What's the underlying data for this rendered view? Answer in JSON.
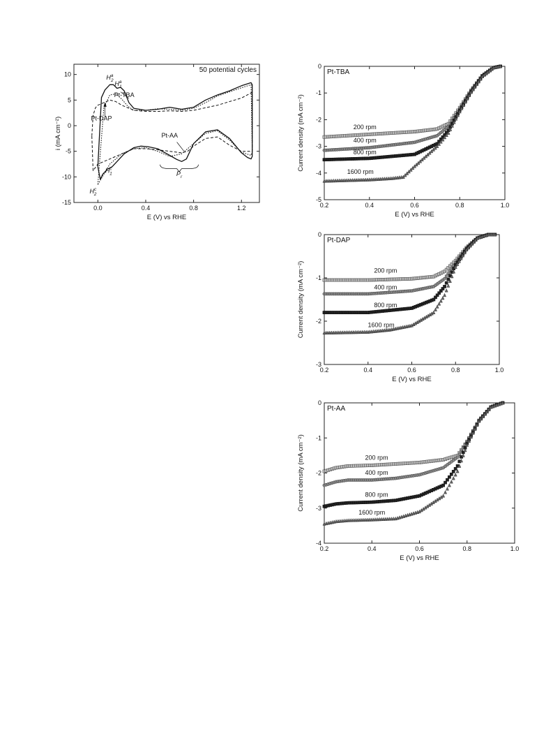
{
  "chart_data": [
    {
      "id": "cv",
      "type": "line",
      "title": "50 potential cycles",
      "xlabel": "E (V) vs RHE",
      "ylabel": "i (mA cm⁻²)",
      "xlim": [
        -0.2,
        1.35
      ],
      "ylim": [
        -15,
        12
      ],
      "xticks": [
        0.0,
        0.4,
        0.8,
        1.2
      ],
      "xtick_labels": [
        "0.0",
        "0.4",
        "0.8",
        "1.2"
      ],
      "yticks": [
        -15,
        -10,
        -5,
        0,
        5,
        10
      ],
      "ytick_labels": [
        "-15",
        "-10",
        "-5",
        "0",
        "5",
        "10"
      ],
      "series": [
        {
          "name": "Pt-TBA",
          "style": "solid",
          "x": [
            0.0,
            0.03,
            0.06,
            0.1,
            0.13,
            0.16,
            0.19,
            0.22,
            0.26,
            0.3,
            0.4,
            0.5,
            0.6,
            0.7,
            0.8,
            0.9,
            1.0,
            1.1,
            1.2,
            1.28,
            1.29,
            1.29,
            1.28,
            1.25,
            1.2,
            1.1,
            1.0,
            0.9,
            0.8,
            0.74,
            0.7,
            0.66,
            0.6,
            0.5,
            0.42,
            0.36,
            0.3,
            0.22,
            0.16,
            0.12,
            0.08,
            0.04,
            0.02,
            0.0
          ],
          "y": [
            -8.0,
            5.5,
            7.0,
            8.0,
            8.0,
            7.3,
            7.5,
            6.8,
            4.5,
            3.4,
            3.0,
            3.2,
            3.6,
            3.2,
            3.6,
            5.0,
            6.0,
            6.8,
            7.8,
            8.4,
            8.0,
            -6.0,
            -6.5,
            -6.2,
            -5.3,
            -2.5,
            -0.8,
            -1.2,
            -3.5,
            -6.5,
            -7.0,
            -6.6,
            -5.8,
            -4.5,
            -4.1,
            -4.0,
            -4.3,
            -5.5,
            -7.0,
            -8.0,
            -8.5,
            -9.5,
            -10.5,
            -8.0
          ]
        },
        {
          "name": "Pt-DAP",
          "style": "dotted",
          "x": [
            0.0,
            0.05,
            0.1,
            0.15,
            0.2,
            0.25,
            0.3,
            0.4,
            0.5,
            0.6,
            0.7,
            0.8,
            0.9,
            1.0,
            1.1,
            1.2,
            1.28,
            1.29,
            1.28,
            1.2,
            1.1,
            1.0,
            0.9,
            0.8,
            0.7,
            0.6,
            0.5,
            0.4,
            0.3,
            0.2,
            0.1,
            0.05,
            0.0
          ],
          "y": [
            -11.5,
            3.5,
            6.0,
            6.2,
            5.2,
            3.8,
            3.0,
            3.0,
            3.3,
            3.2,
            3.0,
            3.4,
            4.5,
            5.8,
            6.6,
            7.4,
            8.0,
            -5.0,
            -5.8,
            -5.2,
            -2.8,
            -1.0,
            -1.5,
            -3.5,
            -5.5,
            -6.0,
            -5.0,
            -4.3,
            -4.5,
            -5.5,
            -7.5,
            -9.5,
            -11.5
          ]
        },
        {
          "name": "Pt-AA",
          "style": "dashed",
          "x": [
            -0.05,
            -0.04,
            -0.02,
            0.0,
            0.05,
            0.1,
            0.15,
            0.2,
            0.3,
            0.4,
            0.5,
            0.6,
            0.7,
            0.8,
            0.9,
            1.0,
            1.1,
            1.2,
            1.29,
            1.29,
            1.2,
            1.1,
            1.0,
            0.9,
            0.8,
            0.75,
            0.7,
            0.6,
            0.5,
            0.4,
            0.3,
            0.2,
            0.1,
            0.0,
            -0.04,
            -0.05
          ],
          "y": [
            -2.0,
            2.0,
            3.5,
            4.0,
            4.5,
            5.0,
            4.7,
            4.0,
            3.0,
            2.8,
            2.8,
            2.9,
            2.8,
            3.0,
            3.5,
            4.0,
            4.7,
            5.4,
            6.5,
            -5.0,
            -5.0,
            -3.8,
            -2.2,
            -2.5,
            -4.0,
            -5.0,
            -5.3,
            -5.0,
            -4.7,
            -4.5,
            -4.5,
            -5.5,
            -6.5,
            -7.5,
            -8.8,
            -2.0
          ]
        }
      ],
      "annotations": [
        {
          "label": "H",
          "sup": "a",
          "sub": "2",
          "x": 0.1,
          "y": 9.0
        },
        {
          "label": "H",
          "sup": "a",
          "sub": "1",
          "x": 0.17,
          "y": 7.8
        },
        {
          "label": "Pt-TBA",
          "x": 0.22,
          "y": 5.6
        },
        {
          "label": "Pt-DAP",
          "x": 0.03,
          "y": 1.0
        },
        {
          "label": "Pt-AA",
          "x": 0.6,
          "y": -2.3
        },
        {
          "label": "P",
          "sub": "r",
          "x": 0.68,
          "y": -9.8
        },
        {
          "label": "H",
          "sup": "c",
          "sub": "1",
          "x": 0.09,
          "y": -9.2
        },
        {
          "label": "H",
          "sup": "c",
          "sub": "2",
          "x": -0.04,
          "y": -13.2
        }
      ]
    },
    {
      "id": "pt-tba",
      "type": "scatter",
      "title": "Pt-TBA",
      "xlabel": "E (V) vs RHE",
      "ylabel": "Current density (mA cm⁻²)",
      "xlim": [
        0.2,
        1.0
      ],
      "ylim": [
        -5,
        0
      ],
      "xticks": [
        0.2,
        0.4,
        0.6,
        0.8,
        1.0
      ],
      "xtick_labels": [
        "0.2",
        "0.4",
        "0.6",
        "0.8",
        "1.0"
      ],
      "yticks": [
        -5,
        -4,
        -3,
        -2,
        -1,
        0
      ],
      "ytick_labels": [
        "-5",
        "-4",
        "-3",
        "-2",
        "-1",
        "0"
      ],
      "series": [
        {
          "name": "200 rpm",
          "marker": "square",
          "x": [
            0.2,
            0.4,
            0.6,
            0.7,
            0.75,
            0.8,
            0.85,
            0.9,
            0.95,
            0.98
          ],
          "y": [
            -2.65,
            -2.55,
            -2.45,
            -2.35,
            -2.15,
            -1.55,
            -0.9,
            -0.35,
            -0.05,
            0.0
          ]
        },
        {
          "name": "400 rpm",
          "marker": "circle",
          "x": [
            0.2,
            0.4,
            0.6,
            0.7,
            0.75,
            0.8,
            0.85,
            0.9,
            0.95,
            0.98
          ],
          "y": [
            -3.15,
            -3.05,
            -2.85,
            -2.6,
            -2.25,
            -1.6,
            -0.92,
            -0.36,
            -0.05,
            0.0
          ]
        },
        {
          "name": "800 rpm",
          "marker": "square-filled",
          "x": [
            0.2,
            0.4,
            0.6,
            0.7,
            0.75,
            0.8,
            0.85,
            0.9,
            0.95,
            0.98
          ],
          "y": [
            -3.5,
            -3.45,
            -3.3,
            -2.9,
            -2.4,
            -1.65,
            -0.95,
            -0.37,
            -0.05,
            0.0
          ]
        },
        {
          "name": "1600 rpm",
          "marker": "triangle",
          "x": [
            0.2,
            0.4,
            0.5,
            0.55,
            0.6,
            0.7,
            0.75,
            0.8,
            0.85,
            0.9,
            0.95,
            0.98
          ],
          "y": [
            -4.3,
            -4.25,
            -4.2,
            -4.15,
            -3.75,
            -3.0,
            -2.5,
            -1.7,
            -0.97,
            -0.38,
            -0.05,
            0.0
          ]
        }
      ],
      "annotations": [
        {
          "label": "200 rpm",
          "x": 0.38,
          "y": -2.35
        },
        {
          "label": "400 rpm",
          "x": 0.38,
          "y": -2.85
        },
        {
          "label": "800 rpm",
          "x": 0.38,
          "y": -3.3
        },
        {
          "label": "1600 rpm",
          "x": 0.36,
          "y": -4.03
        }
      ]
    },
    {
      "id": "pt-dap",
      "type": "scatter",
      "title": "Pt-DAP",
      "xlabel": "E (V) vs RHE",
      "ylabel": "Current density (mA cm⁻²)",
      "xlim": [
        0.2,
        1.0
      ],
      "ylim": [
        -3,
        0
      ],
      "xticks": [
        0.2,
        0.4,
        0.6,
        0.8,
        1.0
      ],
      "xtick_labels": [
        "0.2",
        "0.4",
        "0.6",
        "0.8",
        "1.0"
      ],
      "yticks": [
        -3,
        -2,
        -1,
        0
      ],
      "ytick_labels": [
        "-3",
        "-2",
        "-1",
        "0"
      ],
      "series": [
        {
          "name": "200 rpm",
          "marker": "square",
          "x": [
            0.2,
            0.4,
            0.6,
            0.7,
            0.75,
            0.8,
            0.85,
            0.9,
            0.95,
            0.98
          ],
          "y": [
            -1.05,
            -1.05,
            -1.02,
            -0.97,
            -0.85,
            -0.6,
            -0.3,
            -0.08,
            0.0,
            0.0
          ]
        },
        {
          "name": "400 rpm",
          "marker": "circle",
          "x": [
            0.2,
            0.4,
            0.6,
            0.7,
            0.75,
            0.8,
            0.85,
            0.9,
            0.95,
            0.98
          ],
          "y": [
            -1.37,
            -1.37,
            -1.3,
            -1.2,
            -1.02,
            -0.65,
            -0.32,
            -0.08,
            0.0,
            0.0
          ]
        },
        {
          "name": "800 rpm",
          "marker": "square-filled",
          "x": [
            0.2,
            0.4,
            0.5,
            0.6,
            0.7,
            0.75,
            0.8,
            0.85,
            0.9,
            0.95,
            0.98
          ],
          "y": [
            -1.8,
            -1.8,
            -1.75,
            -1.7,
            -1.5,
            -1.2,
            -0.7,
            -0.33,
            -0.08,
            0.0,
            0.0
          ]
        },
        {
          "name": "1600 rpm",
          "marker": "triangle",
          "x": [
            0.2,
            0.4,
            0.5,
            0.6,
            0.7,
            0.75,
            0.8,
            0.85,
            0.9,
            0.95,
            0.98
          ],
          "y": [
            -2.27,
            -2.25,
            -2.2,
            -2.1,
            -1.8,
            -1.4,
            -0.75,
            -0.35,
            -0.08,
            0.0,
            0.0
          ]
        }
      ],
      "annotations": [
        {
          "label": "200 rpm",
          "x": 0.48,
          "y": -0.88
        },
        {
          "label": "400 rpm",
          "x": 0.48,
          "y": -1.27
        },
        {
          "label": "800 rpm",
          "x": 0.48,
          "y": -1.68
        },
        {
          "label": "1600 rpm",
          "x": 0.46,
          "y": -2.14
        }
      ]
    },
    {
      "id": "pt-aa",
      "type": "scatter",
      "title": "Pt-AA",
      "xlabel": "E (V) vs RHE",
      "ylabel": "Current density (mA cm⁻²)",
      "xlim": [
        0.2,
        1.0
      ],
      "ylim": [
        -4,
        0
      ],
      "xticks": [
        0.2,
        0.4,
        0.6,
        0.8,
        1.0
      ],
      "xtick_labels": [
        "0.2",
        "0.4",
        "0.6",
        "0.8",
        "1.0"
      ],
      "yticks": [
        -4,
        -3,
        -2,
        -1,
        0
      ],
      "ytick_labels": [
        "-4",
        "-3",
        "-2",
        "-1",
        "0"
      ],
      "series": [
        {
          "name": "200 rpm",
          "marker": "square",
          "x": [
            0.2,
            0.25,
            0.3,
            0.4,
            0.6,
            0.7,
            0.76,
            0.8,
            0.85,
            0.9,
            0.95
          ],
          "y": [
            -1.95,
            -1.85,
            -1.8,
            -1.78,
            -1.7,
            -1.62,
            -1.5,
            -1.1,
            -0.5,
            -0.12,
            0.0
          ]
        },
        {
          "name": "400 rpm",
          "marker": "circle",
          "x": [
            0.2,
            0.25,
            0.3,
            0.4,
            0.5,
            0.6,
            0.7,
            0.76,
            0.8,
            0.85,
            0.9,
            0.95
          ],
          "y": [
            -2.35,
            -2.25,
            -2.2,
            -2.2,
            -2.15,
            -2.05,
            -1.85,
            -1.55,
            -1.1,
            -0.5,
            -0.12,
            0.0
          ]
        },
        {
          "name": "800 rpm",
          "marker": "square-filled",
          "x": [
            0.2,
            0.25,
            0.3,
            0.4,
            0.5,
            0.6,
            0.7,
            0.76,
            0.8,
            0.85,
            0.9,
            0.95
          ],
          "y": [
            -2.95,
            -2.88,
            -2.85,
            -2.83,
            -2.78,
            -2.65,
            -2.35,
            -1.8,
            -1.15,
            -0.52,
            -0.12,
            0.0
          ]
        },
        {
          "name": "1600 rpm",
          "marker": "triangle",
          "x": [
            0.2,
            0.25,
            0.3,
            0.4,
            0.5,
            0.6,
            0.7,
            0.76,
            0.8,
            0.85,
            0.9,
            0.95
          ],
          "y": [
            -3.45,
            -3.38,
            -3.35,
            -3.33,
            -3.3,
            -3.1,
            -2.65,
            -1.95,
            -1.2,
            -0.52,
            -0.12,
            0.0
          ]
        }
      ],
      "annotations": [
        {
          "label": "200 rpm",
          "x": 0.42,
          "y": -1.62
        },
        {
          "label": "400 rpm",
          "x": 0.42,
          "y": -2.05
        },
        {
          "label": "800 rpm",
          "x": 0.42,
          "y": -2.68
        },
        {
          "label": "1600 rpm",
          "x": 0.4,
          "y": -3.18
        }
      ]
    }
  ]
}
